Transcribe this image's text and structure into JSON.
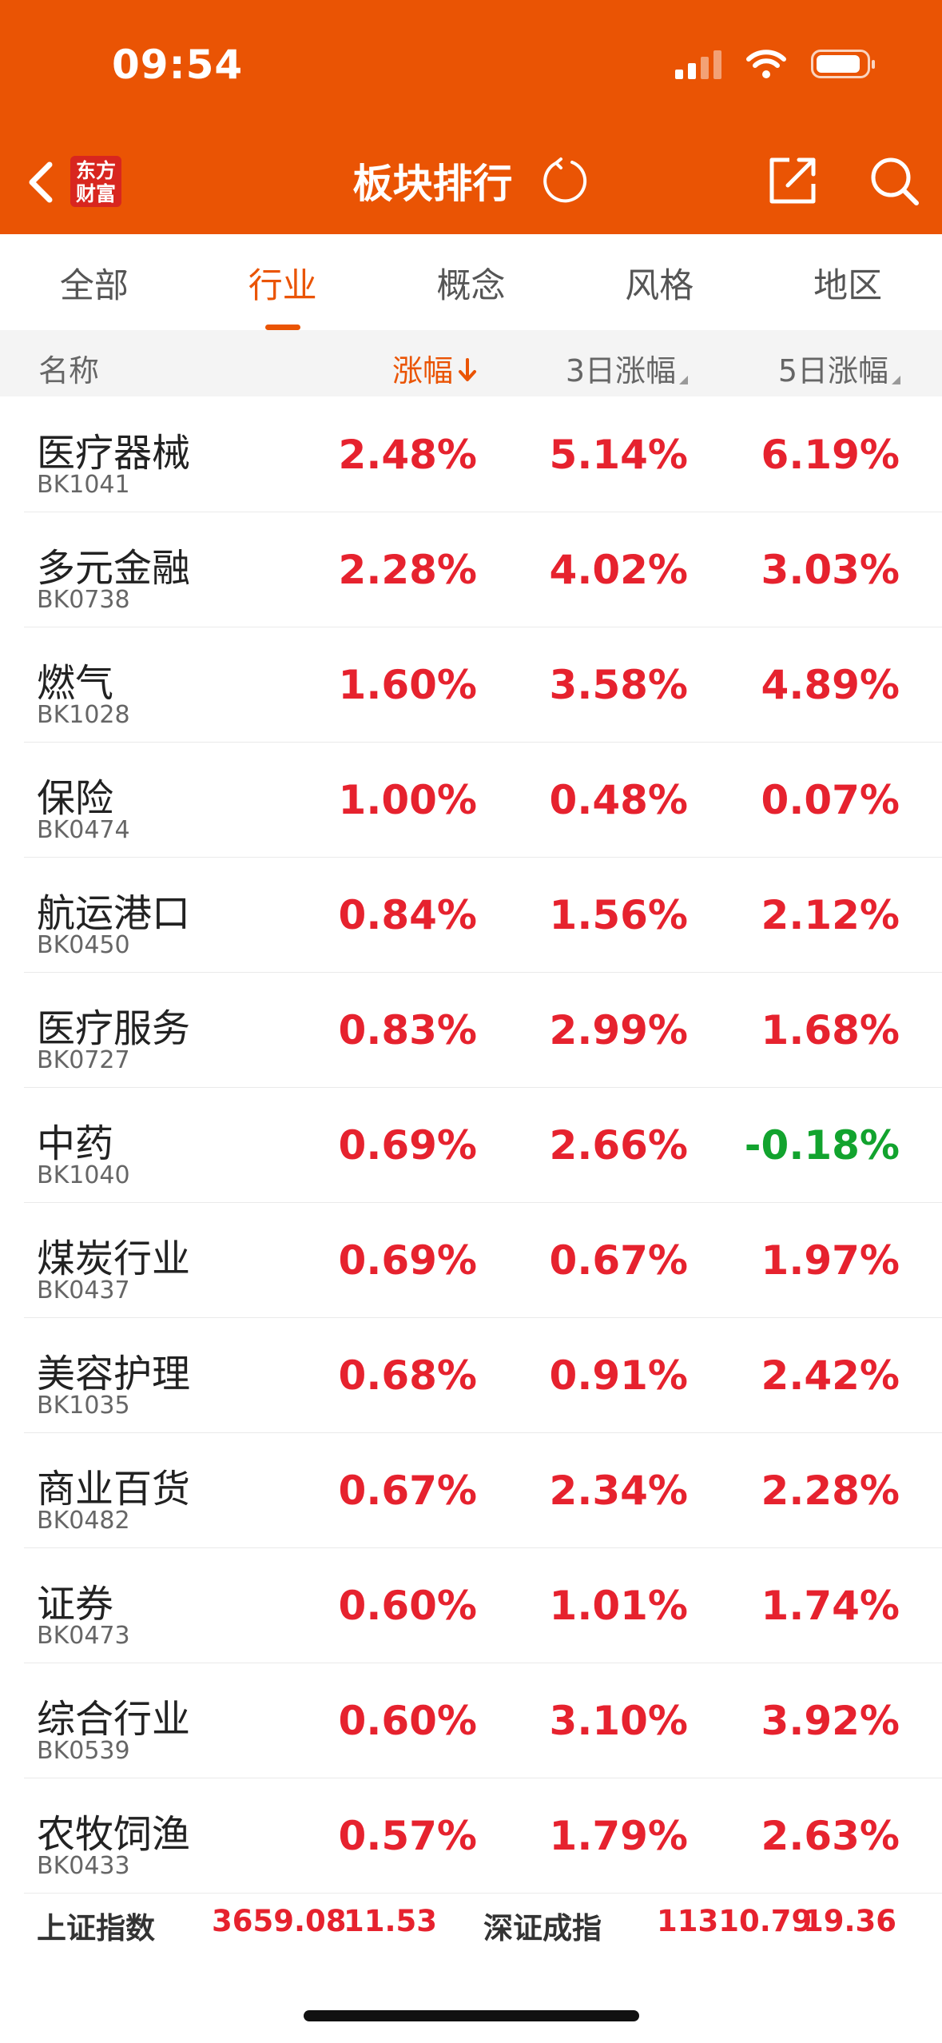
{
  "status_bar": {
    "time": "09:54"
  },
  "nav": {
    "logo_text_line1": "东方",
    "logo_text_line2": "财富",
    "title": "板块排行"
  },
  "tabs": [
    {
      "label": "全部",
      "active": false
    },
    {
      "label": "行业",
      "active": true
    },
    {
      "label": "概念",
      "active": false
    },
    {
      "label": "风格",
      "active": false
    },
    {
      "label": "地区",
      "active": false
    }
  ],
  "columns": {
    "name": "名称",
    "change": "涨幅",
    "change_sort_icon": "arrow-down",
    "change_3d": "3日涨幅",
    "change_5d": "5日涨幅"
  },
  "rows": [
    {
      "name": "医疗器械",
      "code": "BK1041",
      "change": "2.48%",
      "change_3d": "5.14%",
      "change_5d": "6.19%"
    },
    {
      "name": "多元金融",
      "code": "BK0738",
      "change": "2.28%",
      "change_3d": "4.02%",
      "change_5d": "3.03%"
    },
    {
      "name": "燃气",
      "code": "BK1028",
      "change": "1.60%",
      "change_3d": "3.58%",
      "change_5d": "4.89%"
    },
    {
      "name": "保险",
      "code": "BK0474",
      "change": "1.00%",
      "change_3d": "0.48%",
      "change_5d": "0.07%"
    },
    {
      "name": "航运港口",
      "code": "BK0450",
      "change": "0.84%",
      "change_3d": "1.56%",
      "change_5d": "2.12%"
    },
    {
      "name": "医疗服务",
      "code": "BK0727",
      "change": "0.83%",
      "change_3d": "2.99%",
      "change_5d": "1.68%"
    },
    {
      "name": "中药",
      "code": "BK1040",
      "change": "0.69%",
      "change_3d": "2.66%",
      "change_5d": "-0.18%"
    },
    {
      "name": "煤炭行业",
      "code": "BK0437",
      "change": "0.69%",
      "change_3d": "0.67%",
      "change_5d": "1.97%"
    },
    {
      "name": "美容护理",
      "code": "BK1035",
      "change": "0.68%",
      "change_3d": "0.91%",
      "change_5d": "2.42%"
    },
    {
      "name": "商业百货",
      "code": "BK0482",
      "change": "0.67%",
      "change_3d": "2.34%",
      "change_5d": "2.28%"
    },
    {
      "name": "证券",
      "code": "BK0473",
      "change": "0.60%",
      "change_3d": "1.01%",
      "change_5d": "1.74%"
    },
    {
      "name": "综合行业",
      "code": "BK0539",
      "change": "0.60%",
      "change_3d": "3.10%",
      "change_5d": "3.92%"
    },
    {
      "name": "农牧饲渔",
      "code": "BK0433",
      "change": "0.57%",
      "change_3d": "1.79%",
      "change_5d": "2.63%"
    }
  ],
  "index_bar": {
    "sh_name": "上证指数",
    "sh_value": "3659.08",
    "sh_change": "11.53",
    "sz_name": "深证成指",
    "sz_value": "11310.79",
    "sz_change": "19.36"
  },
  "colors": {
    "brand": "#ea5404",
    "up": "#e6222e",
    "down": "#12a32e"
  }
}
